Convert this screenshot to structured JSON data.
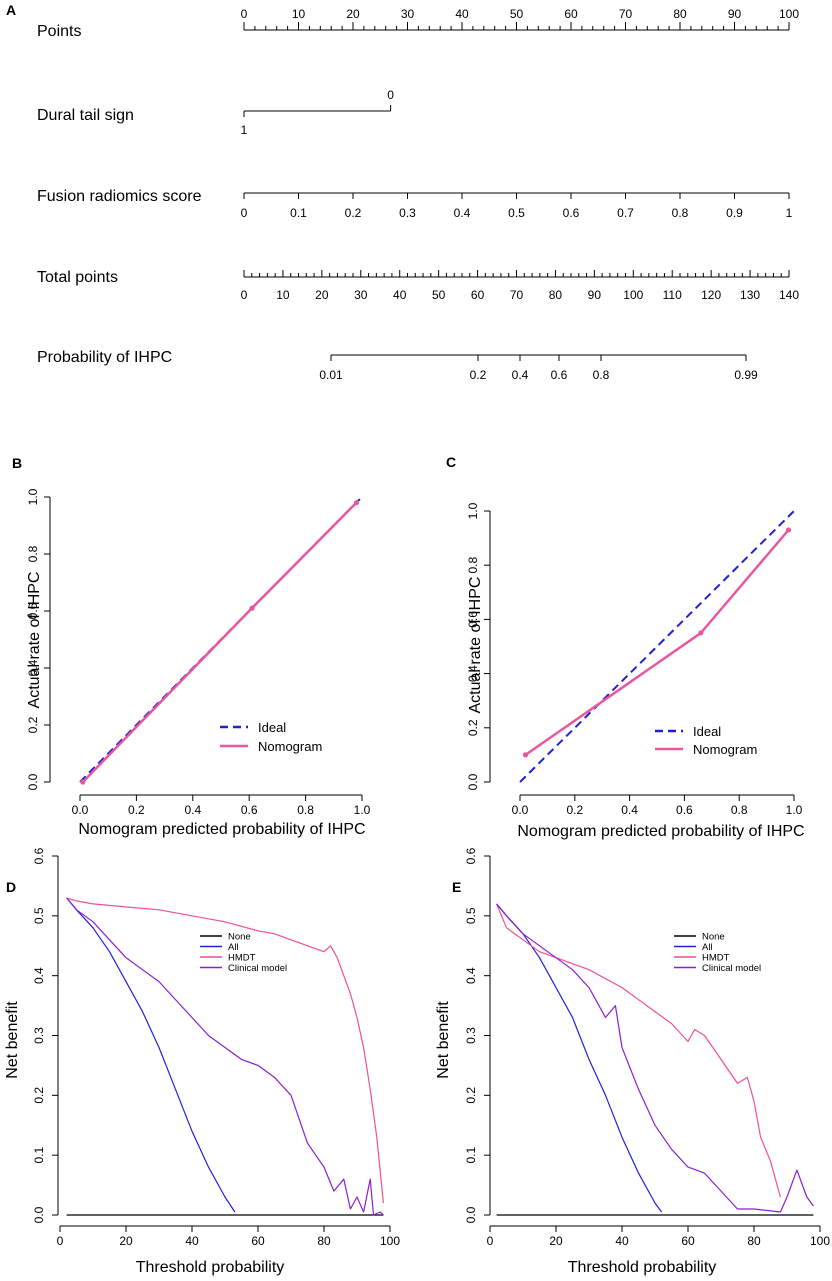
{
  "nomogram": {
    "panel_label": "A",
    "rows": [
      {
        "label": "Points",
        "ticks": [
          "0",
          "10",
          "20",
          "30",
          "40",
          "50",
          "60",
          "70",
          "80",
          "90",
          "100"
        ]
      },
      {
        "label": "Dural tail sign",
        "ticks": [
          "0",
          "1"
        ]
      },
      {
        "label": "Fusion radiomics score",
        "ticks": [
          "0",
          "0.1",
          "0.2",
          "0.3",
          "0.4",
          "0.5",
          "0.6",
          "0.7",
          "0.8",
          "0.9",
          "1"
        ]
      },
      {
        "label": "Total points",
        "ticks": [
          "0",
          "10",
          "20",
          "30",
          "40",
          "50",
          "60",
          "70",
          "80",
          "90",
          "100",
          "110",
          "120",
          "130",
          "140"
        ]
      },
      {
        "label": "Probability of IHPC",
        "ticks": [
          "0.01",
          "0.2",
          "0.4",
          "0.6",
          "0.8",
          "0.99"
        ]
      }
    ]
  },
  "chart_data": [
    {
      "panel": "B",
      "type": "line",
      "xlabel": "Nomogram predicted probability of IHPC",
      "ylabel": "Actual rate of IHPC",
      "xlim": [
        0,
        1
      ],
      "ylim": [
        0,
        1
      ],
      "xticks": [
        "0.0",
        "0.2",
        "0.4",
        "0.6",
        "0.8",
        "1.0"
      ],
      "yticks": [
        "0.0",
        "0.2",
        "0.4",
        "0.6",
        "0.8",
        "1.0"
      ],
      "legend": [
        "Ideal",
        "Nomogram"
      ],
      "series": [
        {
          "name": "Ideal",
          "color": "#1f1fd6",
          "x": [
            0,
            1
          ],
          "y": [
            0,
            1
          ]
        },
        {
          "name": "Nomogram",
          "color": "#e8579c",
          "x": [
            0.01,
            0.61,
            0.98
          ],
          "y": [
            0.0,
            0.61,
            0.98
          ]
        }
      ]
    },
    {
      "panel": "C",
      "type": "line",
      "xlabel": "Nomogram predicted probability of IHPC",
      "ylabel": "Actual rate of IHPC",
      "xlim": [
        0,
        1
      ],
      "ylim": [
        0,
        1
      ],
      "xticks": [
        "0.0",
        "0.2",
        "0.4",
        "0.6",
        "0.8",
        "1.0"
      ],
      "yticks": [
        "0.0",
        "0.2",
        "0.4",
        "0.6",
        "0.8",
        "1.0"
      ],
      "legend": [
        "Ideal",
        "Nomogram"
      ],
      "series": [
        {
          "name": "Ideal",
          "color": "#1f1fd6",
          "x": [
            0,
            1
          ],
          "y": [
            0,
            1
          ]
        },
        {
          "name": "Nomogram",
          "color": "#e8579c",
          "x": [
            0.02,
            0.66,
            0.98
          ],
          "y": [
            0.1,
            0.55,
            0.93
          ]
        }
      ]
    },
    {
      "panel": "D",
      "type": "line",
      "xlabel": "Threshold probability",
      "ylabel": "Net benefit",
      "xlim": [
        0,
        100
      ],
      "ylim": [
        0,
        0.6
      ],
      "xticks": [
        "0",
        "20",
        "40",
        "60",
        "80",
        "100"
      ],
      "yticks": [
        "0.0",
        "0.1",
        "0.2",
        "0.3",
        "0.4",
        "0.5",
        "0.6"
      ],
      "legend": [
        "None",
        "All",
        "HMDT",
        "Clinical model"
      ],
      "series": [
        {
          "name": "None",
          "color": "#000000",
          "x": [
            2,
            98
          ],
          "y": [
            0,
            0
          ]
        },
        {
          "name": "All",
          "color": "#2020e0",
          "x": [
            2,
            5,
            10,
            15,
            20,
            25,
            30,
            35,
            40,
            45,
            50,
            53
          ],
          "y": [
            0.53,
            0.51,
            0.48,
            0.44,
            0.39,
            0.34,
            0.28,
            0.21,
            0.14,
            0.08,
            0.03,
            0.005
          ]
        },
        {
          "name": "HMDT",
          "color": "#ee4f97",
          "x": [
            2,
            5,
            10,
            20,
            30,
            40,
            50,
            60,
            65,
            70,
            75,
            80,
            82,
            84,
            86,
            88,
            90,
            92,
            94,
            96,
            98
          ],
          "y": [
            0.53,
            0.525,
            0.52,
            0.515,
            0.51,
            0.5,
            0.49,
            0.475,
            0.47,
            0.46,
            0.45,
            0.44,
            0.45,
            0.43,
            0.4,
            0.37,
            0.33,
            0.28,
            0.21,
            0.13,
            0.02
          ]
        },
        {
          "name": "Clinical model",
          "color": "#8a1fd0",
          "x": [
            2,
            5,
            10,
            15,
            20,
            25,
            30,
            35,
            40,
            45,
            50,
            55,
            60,
            65,
            70,
            75,
            80,
            83,
            86,
            88,
            90,
            92,
            94,
            95,
            97,
            98
          ],
          "y": [
            0.53,
            0.51,
            0.49,
            0.46,
            0.43,
            0.41,
            0.39,
            0.36,
            0.33,
            0.3,
            0.28,
            0.26,
            0.25,
            0.23,
            0.2,
            0.12,
            0.08,
            0.04,
            0.06,
            0.01,
            0.03,
            0.005,
            0.06,
            0.0,
            0.005,
            0.0
          ]
        }
      ]
    },
    {
      "panel": "E",
      "type": "line",
      "xlabel": "Threshold probability",
      "ylabel": "Net benefit",
      "xlim": [
        0,
        100
      ],
      "ylim": [
        0,
        0.6
      ],
      "xticks": [
        "0",
        "20",
        "40",
        "60",
        "80",
        "100"
      ],
      "yticks": [
        "0.0",
        "0.1",
        "0.2",
        "0.3",
        "0.4",
        "0.5",
        "0.6"
      ],
      "legend": [
        "None",
        "All",
        "HMDT",
        "Clinical model"
      ],
      "series": [
        {
          "name": "None",
          "color": "#000000",
          "x": [
            2,
            98
          ],
          "y": [
            0,
            0
          ]
        },
        {
          "name": "All",
          "color": "#2020e0",
          "x": [
            2,
            5,
            10,
            15,
            20,
            25,
            30,
            35,
            40,
            45,
            50,
            52
          ],
          "y": [
            0.52,
            0.5,
            0.47,
            0.43,
            0.38,
            0.33,
            0.26,
            0.2,
            0.13,
            0.07,
            0.02,
            0.005
          ]
        },
        {
          "name": "HMDT",
          "color": "#ee4f97",
          "x": [
            2,
            5,
            10,
            15,
            20,
            30,
            40,
            50,
            55,
            60,
            62,
            65,
            70,
            75,
            78,
            80,
            82,
            85,
            87,
            88
          ],
          "y": [
            0.52,
            0.48,
            0.46,
            0.44,
            0.43,
            0.41,
            0.38,
            0.34,
            0.32,
            0.29,
            0.31,
            0.3,
            0.26,
            0.22,
            0.23,
            0.19,
            0.13,
            0.09,
            0.05,
            0.03
          ]
        },
        {
          "name": "Clinical model",
          "color": "#8a1fd0",
          "x": [
            2,
            5,
            10,
            15,
            20,
            25,
            30,
            35,
            38,
            40,
            45,
            50,
            55,
            60,
            65,
            70,
            75,
            80,
            88,
            90,
            93,
            96,
            98
          ],
          "y": [
            0.52,
            0.5,
            0.47,
            0.45,
            0.43,
            0.41,
            0.38,
            0.33,
            0.35,
            0.28,
            0.21,
            0.15,
            0.11,
            0.08,
            0.07,
            0.04,
            0.01,
            0.01,
            0.005,
            0.03,
            0.075,
            0.03,
            0.015
          ]
        }
      ]
    }
  ]
}
